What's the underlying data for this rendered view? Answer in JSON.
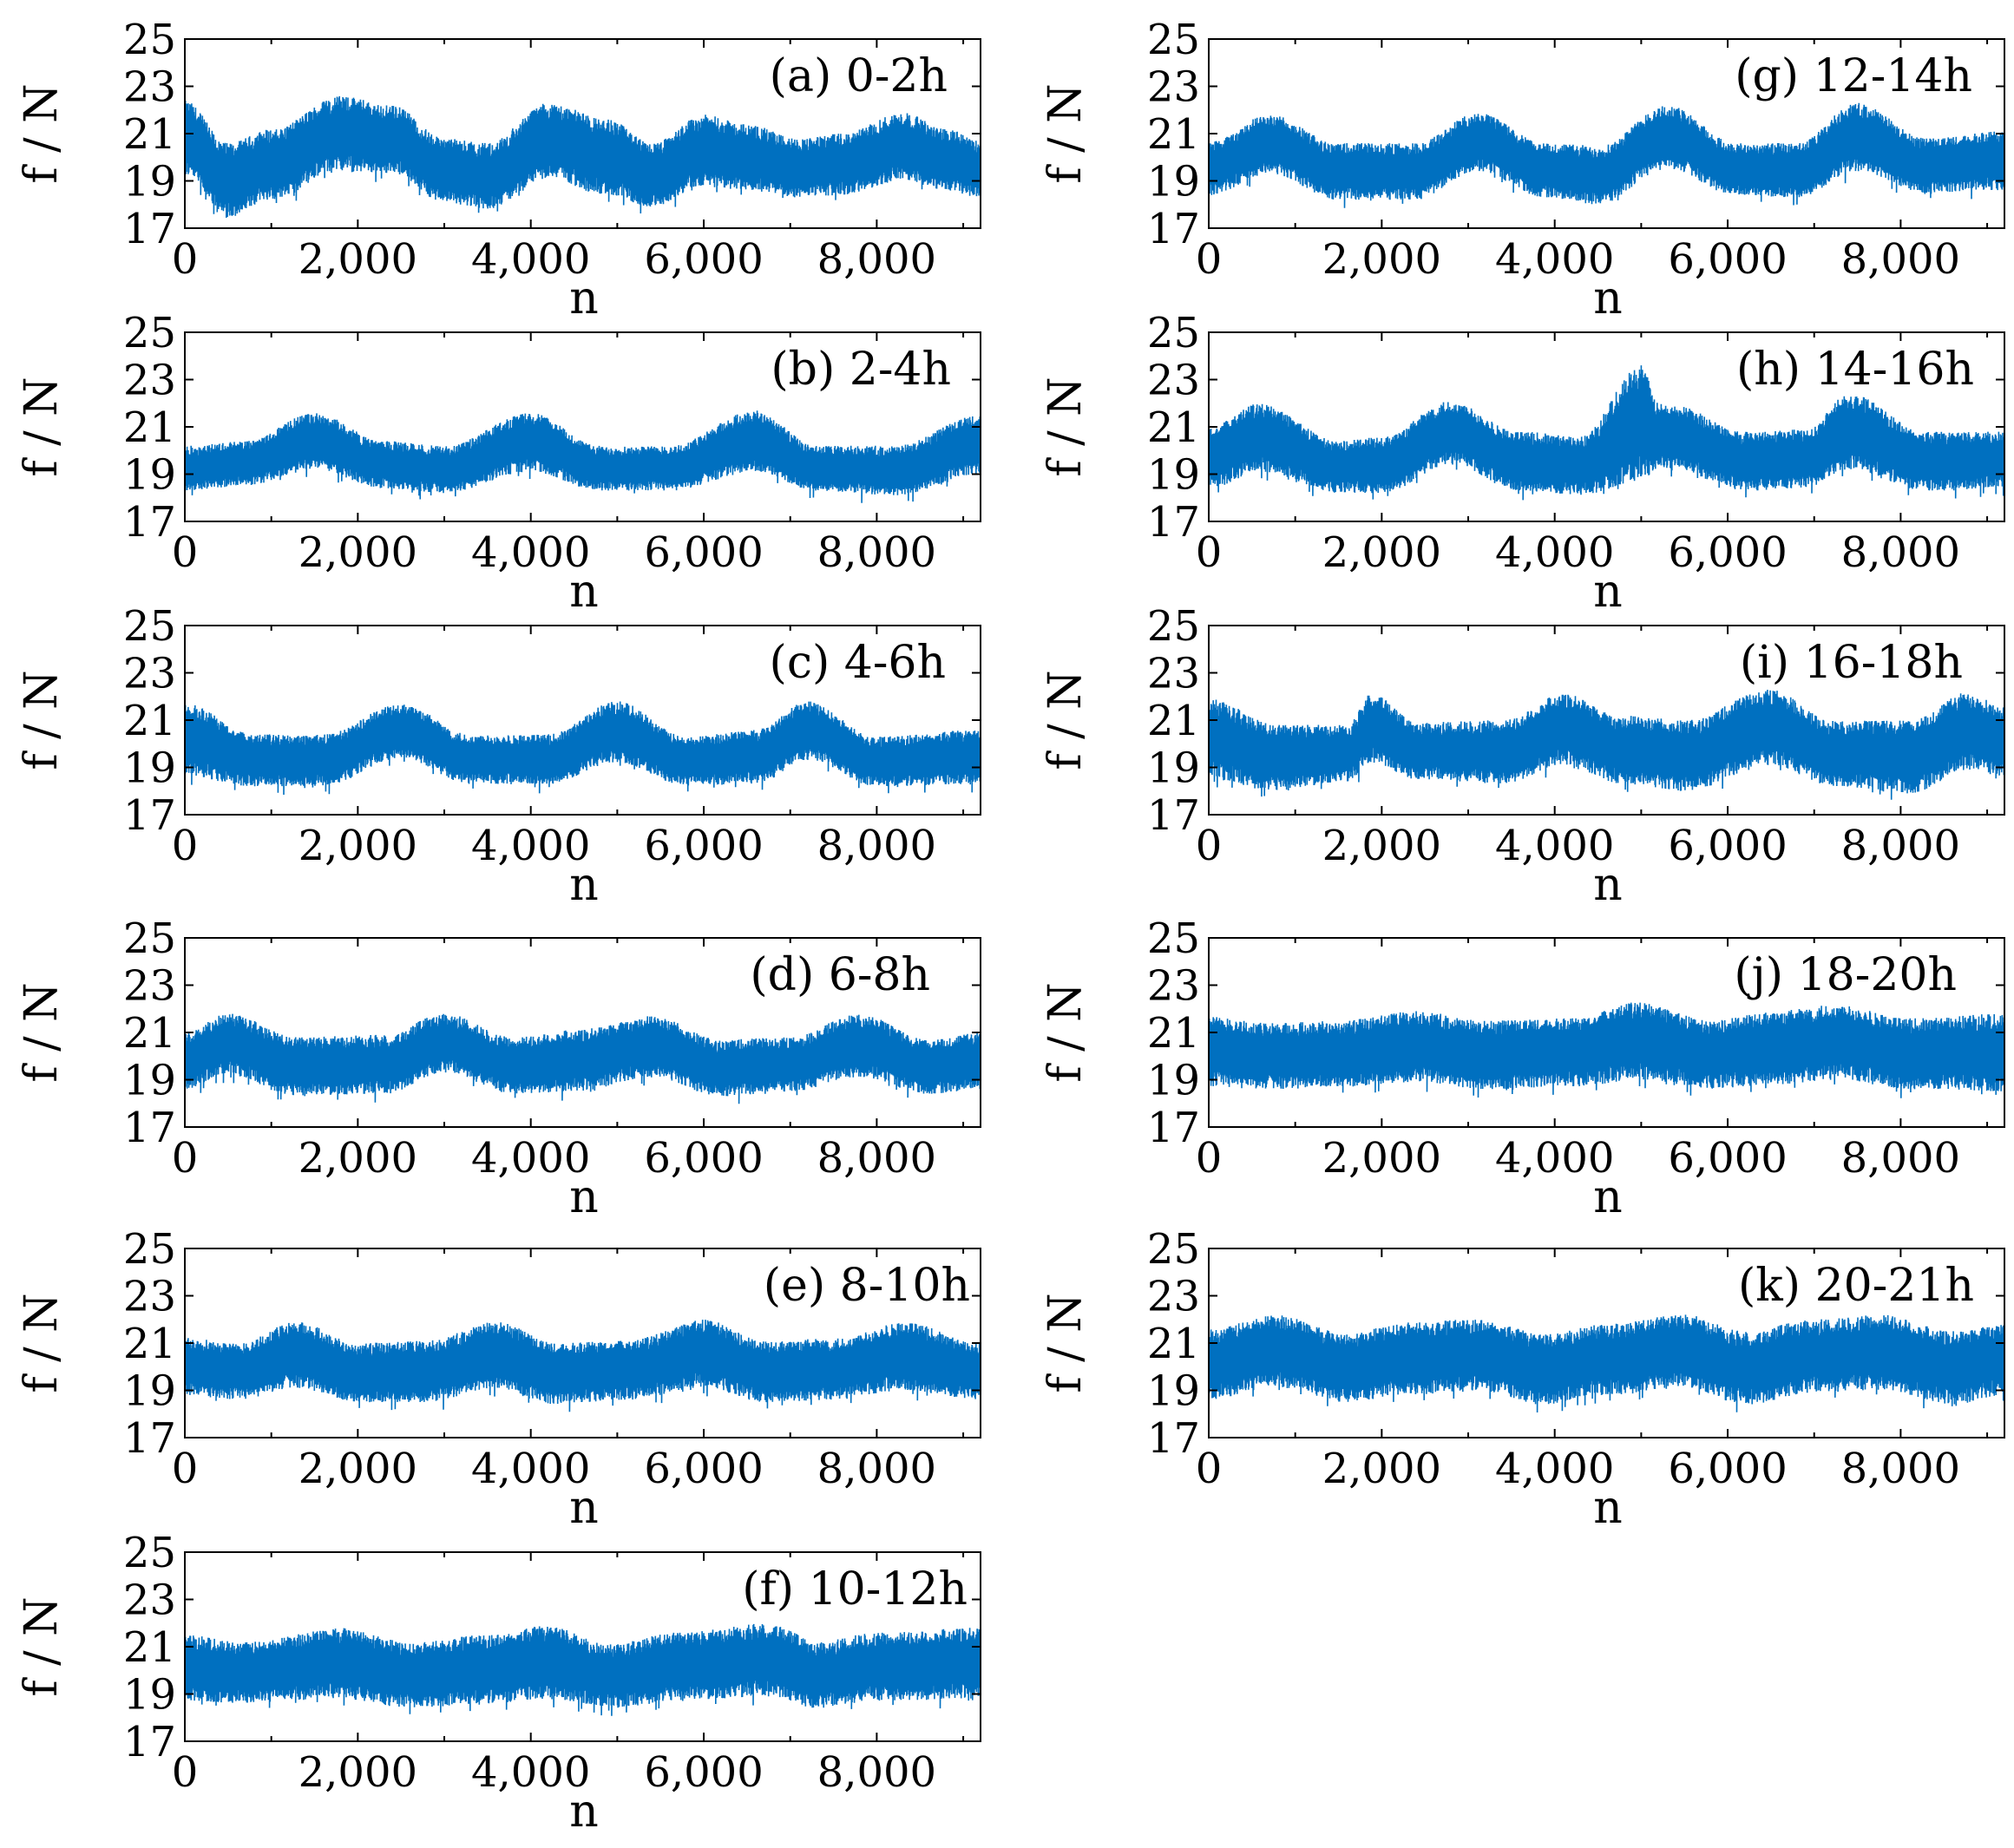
{
  "figure": {
    "series_color": "#0070c0"
  },
  "chart_data": [
    {
      "id": "a",
      "type": "line",
      "title": "(a) 0-2h",
      "xlabel": "n",
      "ylabel": "f / N",
      "xlim": [
        0,
        9200
      ],
      "ylim": [
        17,
        25
      ],
      "xticks": [
        0,
        2000,
        4000,
        6000,
        8000
      ],
      "xtick_labels": [
        "0",
        "2,000",
        "4,000",
        "6,000",
        "8,000"
      ],
      "yticks": [
        17,
        19,
        21,
        23,
        25
      ],
      "ytick_labels": [
        "17",
        "19",
        "21",
        "23",
        "25"
      ],
      "envelope": {
        "n": [
          0,
          500,
          1000,
          1800,
          2400,
          3000,
          3500,
          4200,
          4900,
          5400,
          6000,
          6500,
          7100,
          7600,
          8300,
          8800,
          9200
        ],
        "upper": [
          22.4,
          20.6,
          21.2,
          22.6,
          22.2,
          20.8,
          20.6,
          22.3,
          21.6,
          20.6,
          21.8,
          21.4,
          20.8,
          21.0,
          21.9,
          21.2,
          20.7
        ],
        "lower": [
          19.2,
          17.4,
          18.2,
          19.4,
          19.3,
          18.1,
          17.8,
          19.1,
          18.4,
          17.9,
          18.8,
          18.6,
          18.3,
          18.4,
          19.0,
          18.6,
          18.3
        ]
      }
    },
    {
      "id": "b",
      "type": "line",
      "title": "(b) 2-4h",
      "xlabel": "n",
      "ylabel": "f / N",
      "xlim": [
        0,
        9200
      ],
      "ylim": [
        17,
        25
      ],
      "xticks": [
        0,
        2000,
        4000,
        6000,
        8000
      ],
      "xtick_labels": [
        "0",
        "2,000",
        "4,000",
        "6,000",
        "8,000"
      ],
      "yticks": [
        17,
        19,
        21,
        23,
        25
      ],
      "ytick_labels": [
        "17",
        "19",
        "21",
        "23",
        "25"
      ],
      "envelope": {
        "n": [
          0,
          700,
          1500,
          2300,
          3000,
          4000,
          4800,
          5600,
          6600,
          7300,
          8200,
          9200
        ],
        "upper": [
          20.2,
          20.4,
          21.6,
          20.4,
          20.2,
          21.6,
          20.2,
          20.2,
          21.7,
          20.2,
          20.2,
          21.5
        ],
        "lower": [
          18.3,
          18.5,
          19.2,
          18.4,
          18.2,
          19.1,
          18.3,
          18.3,
          19.1,
          18.3,
          18.1,
          19.0
        ]
      }
    },
    {
      "id": "c",
      "type": "line",
      "title": "(c) 4-6h",
      "xlabel": "n",
      "ylabel": "f / N",
      "xlim": [
        0,
        9200
      ],
      "ylim": [
        17,
        25
      ],
      "xticks": [
        0,
        2000,
        4000,
        6000,
        8000
      ],
      "xtick_labels": [
        "0",
        "2,000",
        "4,000",
        "6,000",
        "8,000"
      ],
      "yticks": [
        17,
        19,
        21,
        23,
        25
      ],
      "ytick_labels": [
        "17",
        "19",
        "21",
        "23",
        "25"
      ],
      "envelope": {
        "n": [
          0,
          800,
          1600,
          2500,
          3300,
          4200,
          5000,
          5800,
          6600,
          7200,
          8000,
          9200
        ],
        "upper": [
          21.7,
          20.4,
          20.4,
          21.7,
          20.4,
          20.4,
          21.8,
          20.3,
          20.6,
          21.8,
          20.3,
          20.6
        ],
        "lower": [
          18.6,
          18.2,
          18.2,
          19.4,
          18.3,
          18.3,
          19.2,
          18.2,
          18.3,
          19.3,
          18.2,
          18.3
        ]
      }
    },
    {
      "id": "d",
      "type": "line",
      "title": "(d) 6-8h",
      "xlabel": "n",
      "ylabel": "f / N",
      "xlim": [
        0,
        9200
      ],
      "ylim": [
        17,
        25
      ],
      "xticks": [
        0,
        2000,
        4000,
        6000,
        8000
      ],
      "xtick_labels": [
        "0",
        "2,000",
        "4,000",
        "6,000",
        "8,000"
      ],
      "yticks": [
        17,
        19,
        21,
        23,
        25
      ],
      "ytick_labels": [
        "17",
        "19",
        "21",
        "23",
        "25"
      ],
      "envelope": {
        "n": [
          0,
          500,
          1300,
          2300,
          3000,
          3800,
          4500,
          5400,
          6200,
          7000,
          7800,
          8600,
          9200
        ],
        "upper": [
          21.0,
          21.8,
          20.8,
          20.9,
          21.8,
          20.8,
          21.1,
          21.7,
          20.7,
          20.8,
          21.8,
          20.7,
          21.0
        ],
        "lower": [
          18.6,
          19.2,
          18.3,
          18.4,
          19.3,
          18.4,
          18.5,
          19.1,
          18.3,
          18.5,
          19.1,
          18.4,
          18.6
        ]
      }
    },
    {
      "id": "e",
      "type": "line",
      "title": "(e) 8-10h",
      "xlabel": "n",
      "ylabel": "f / N",
      "xlim": [
        0,
        9200
      ],
      "ylim": [
        17,
        25
      ],
      "xticks": [
        0,
        2000,
        4000,
        6000,
        8000
      ],
      "xtick_labels": [
        "0",
        "2,000",
        "4,000",
        "6,000",
        "8,000"
      ],
      "yticks": [
        17,
        19,
        21,
        23,
        25
      ],
      "ytick_labels": [
        "17",
        "19",
        "21",
        "23",
        "25"
      ],
      "envelope": {
        "n": [
          0,
          600,
          1300,
          2000,
          2800,
          3600,
          4300,
          5100,
          6000,
          6700,
          7500,
          8300,
          9200
        ],
        "upper": [
          21.3,
          21.0,
          21.9,
          21.0,
          21.1,
          21.9,
          21.0,
          21.1,
          22.0,
          21.1,
          21.2,
          21.9,
          21.0
        ],
        "lower": [
          18.8,
          18.6,
          19.1,
          18.5,
          18.5,
          19.1,
          18.4,
          18.6,
          19.1,
          18.5,
          18.6,
          19.0,
          18.6
        ]
      }
    },
    {
      "id": "f",
      "type": "line",
      "title": "(f) 10-12h",
      "xlabel": "n",
      "ylabel": "f / N",
      "xlim": [
        0,
        9200
      ],
      "ylim": [
        17,
        25
      ],
      "xticks": [
        0,
        2000,
        4000,
        6000,
        8000
      ],
      "xtick_labels": [
        "0",
        "2,000",
        "4,000",
        "6,000",
        "8,000"
      ],
      "yticks": [
        17,
        19,
        21,
        23,
        25
      ],
      "ytick_labels": [
        "17",
        "19",
        "21",
        "23",
        "25"
      ],
      "envelope": {
        "n": [
          0,
          700,
          1800,
          2600,
          3500,
          4200,
          4900,
          5700,
          6800,
          7300,
          8000,
          9200
        ],
        "upper": [
          21.5,
          21.2,
          21.8,
          21.2,
          21.5,
          21.9,
          21.1,
          21.6,
          22.0,
          21.2,
          21.6,
          21.8
        ],
        "lower": [
          18.7,
          18.6,
          18.8,
          18.4,
          18.6,
          18.8,
          18.4,
          18.7,
          18.9,
          18.4,
          18.7,
          18.8
        ]
      }
    },
    {
      "id": "g",
      "type": "line",
      "title": "(g) 12-14h",
      "xlabel": "n",
      "ylabel": "f / N",
      "xlim": [
        0,
        9200
      ],
      "ylim": [
        17,
        25
      ],
      "xticks": [
        0,
        2000,
        4000,
        6000,
        8000
      ],
      "xtick_labels": [
        "0",
        "2,000",
        "4,000",
        "6,000",
        "8,000"
      ],
      "yticks": [
        17,
        19,
        21,
        23,
        25
      ],
      "ytick_labels": [
        "17",
        "19",
        "21",
        "23",
        "25"
      ],
      "envelope": {
        "n": [
          0,
          700,
          1500,
          2400,
          3100,
          3900,
          4500,
          5300,
          6100,
          6800,
          7500,
          8300,
          9200
        ],
        "upper": [
          20.7,
          21.8,
          20.6,
          20.6,
          21.9,
          20.6,
          20.5,
          22.2,
          20.6,
          20.6,
          22.3,
          20.8,
          21.1
        ],
        "lower": [
          18.4,
          19.3,
          18.2,
          18.2,
          19.4,
          18.3,
          18.0,
          19.5,
          18.4,
          18.3,
          19.4,
          18.5,
          18.6
        ]
      }
    },
    {
      "id": "h",
      "type": "line",
      "title": "(h) 14-16h",
      "xlabel": "n",
      "ylabel": "f / N",
      "xlim": [
        0,
        9200
      ],
      "ylim": [
        17,
        25
      ],
      "xticks": [
        0,
        2000,
        4000,
        6000,
        8000
      ],
      "xtick_labels": [
        "0",
        "2,000",
        "4,000",
        "6,000",
        "8,000"
      ],
      "yticks": [
        17,
        19,
        21,
        23,
        25
      ],
      "ytick_labels": [
        "17",
        "19",
        "21",
        "23",
        "25"
      ],
      "envelope": {
        "n": [
          0,
          600,
          1500,
          2000,
          2800,
          3600,
          4300,
          5000,
          5200,
          5400,
          6200,
          6900,
          7400,
          8300,
          9200
        ],
        "upper": [
          21.0,
          22.0,
          20.4,
          20.6,
          22.1,
          20.8,
          20.6,
          23.6,
          22.0,
          21.9,
          20.8,
          20.9,
          22.4,
          20.8,
          20.8
        ],
        "lower": [
          18.4,
          19.1,
          18.2,
          18.2,
          19.4,
          18.3,
          18.1,
          18.7,
          19.2,
          19.1,
          18.3,
          18.4,
          19.2,
          18.3,
          18.4
        ]
      }
    },
    {
      "id": "i",
      "type": "line",
      "title": "(i) 16-18h",
      "xlabel": "n",
      "ylabel": "f / N",
      "xlim": [
        0,
        9200
      ],
      "ylim": [
        17,
        25
      ],
      "xticks": [
        0,
        2000,
        4000,
        6000,
        8000
      ],
      "xtick_labels": [
        "0",
        "2,000",
        "4,000",
        "6,000",
        "8,000"
      ],
      "yticks": [
        17,
        19,
        21,
        23,
        25
      ],
      "ytick_labels": [
        "17",
        "19",
        "21",
        "23",
        "25"
      ],
      "envelope": {
        "n": [
          0,
          800,
          1600,
          1900,
          2400,
          3400,
          4100,
          4800,
          5500,
          6500,
          7200,
          8100,
          8800,
          9200
        ],
        "upper": [
          21.9,
          20.8,
          20.8,
          22.2,
          20.9,
          21.0,
          22.1,
          21.2,
          21.0,
          22.3,
          21.0,
          21.0,
          22.2,
          21.6
        ],
        "lower": [
          18.5,
          18.0,
          18.4,
          19.2,
          18.5,
          18.3,
          19.1,
          18.3,
          18.0,
          19.1,
          18.2,
          17.9,
          18.9,
          18.6
        ]
      }
    },
    {
      "id": "j",
      "type": "line",
      "title": "(j) 18-20h",
      "xlabel": "n",
      "ylabel": "f / N",
      "xlim": [
        0,
        9200
      ],
      "ylim": [
        17,
        25
      ],
      "xticks": [
        0,
        2000,
        4000,
        6000,
        8000
      ],
      "xtick_labels": [
        "0",
        "2,000",
        "4,000",
        "6,000",
        "8,000"
      ],
      "yticks": [
        17,
        19,
        21,
        23,
        25
      ],
      "ytick_labels": [
        "17",
        "19",
        "21",
        "23",
        "25"
      ],
      "envelope": {
        "n": [
          0,
          700,
          1500,
          2400,
          3200,
          4200,
          5000,
          5800,
          6500,
          7300,
          8100,
          9200
        ],
        "upper": [
          21.7,
          21.4,
          21.5,
          21.9,
          21.5,
          21.6,
          22.3,
          21.5,
          21.9,
          22.2,
          21.6,
          21.8
        ],
        "lower": [
          18.7,
          18.6,
          18.7,
          18.9,
          18.6,
          18.7,
          19.0,
          18.6,
          18.8,
          19.0,
          18.6,
          18.5
        ]
      }
    },
    {
      "id": "k",
      "type": "line",
      "title": "(k) 20-21h",
      "xlabel": "n",
      "ylabel": "f / N",
      "xlim": [
        0,
        9200
      ],
      "ylim": [
        17,
        25
      ],
      "xticks": [
        0,
        2000,
        4000,
        6000,
        8000
      ],
      "xtick_labels": [
        "0",
        "2,000",
        "4,000",
        "6,000",
        "8,000"
      ],
      "yticks": [
        17,
        19,
        21,
        23,
        25
      ],
      "ytick_labels": [
        "17",
        "19",
        "21",
        "23",
        "25"
      ],
      "envelope": {
        "n": [
          0,
          800,
          1600,
          2300,
          3100,
          3900,
          4600,
          5500,
          6200,
          7000,
          7800,
          8600,
          9200
        ],
        "upper": [
          21.6,
          22.2,
          21.4,
          21.9,
          22.0,
          21.4,
          21.8,
          22.2,
          21.5,
          22.0,
          22.2,
          21.5,
          21.9
        ],
        "lower": [
          18.6,
          19.1,
          18.5,
          18.8,
          19.0,
          18.4,
          18.8,
          19.1,
          18.4,
          18.9,
          19.0,
          18.4,
          18.8
        ]
      }
    }
  ]
}
